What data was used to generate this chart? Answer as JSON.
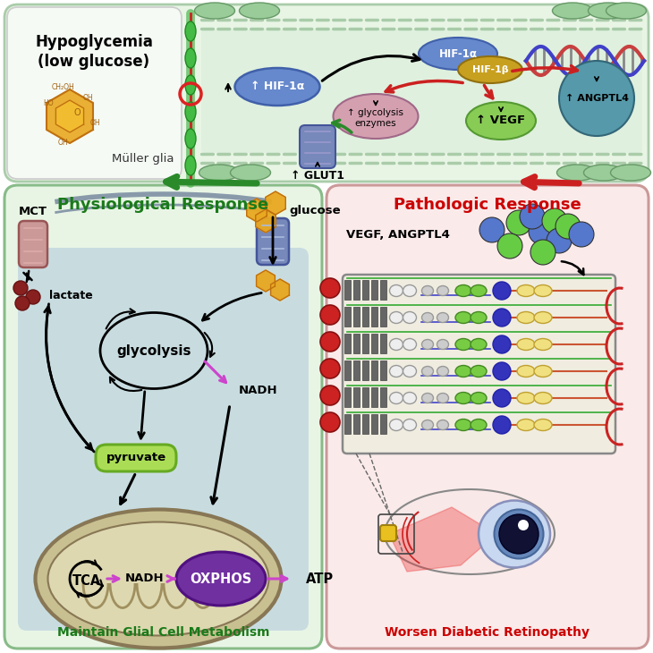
{
  "top_bg": "#e8f5e5",
  "top_border": "#aaccaa",
  "left_bg": "#e8f5e5",
  "left_border": "#88bb88",
  "right_bg": "#faeaea",
  "right_border": "#cc9999",
  "hypo_label": "Hypoglycemia\n(low glucose)",
  "muller_label": "Müller glia",
  "hif1a_small_label": "↑ HIF-1α",
  "glut1_label": "↑ GLUT1",
  "glycolysis_enzyme_label": "↑ glycolysis\nenzymes",
  "vegf_label": "↑ VEGF",
  "angptl4_label": "↑ ANGPTL4",
  "hifa_label": "HIF-1α",
  "hifb_label": "HIF-1β",
  "physio_title": "Physiological Response",
  "physio_footer": "Maintain Glial Cell Metabolism",
  "patho_title": "Pathologic Response",
  "patho_footer": "Worsen Diabetic Retinopathy",
  "mct_label": "MCT",
  "lactate_label": "lactate",
  "glucose_label": "glucose",
  "glycolysis_node": "glycolysis",
  "pyruvate_label": "pyruvate",
  "nadh_label": "NADH",
  "tca_label": "TCA",
  "oxphos_label": "OXPHOS",
  "atp_label": "ATP",
  "vegf_angptl4_label": "VEGF, ANGPTL4",
  "green_arrow": "#2a8a2a",
  "red_arrow": "#cc2020",
  "magenta_arrow": "#cc44cc",
  "black_arrow": "#111111",
  "hif1a_color": "#6688cc",
  "hif1b_color": "#c8a020",
  "gly_enz_color": "#d4a0b0",
  "vegf_color": "#88cc55",
  "angptl4_color": "#5599aa",
  "glucose_color": "#e8a820",
  "pyruvate_fill": "#aadd55",
  "oxphos_fill": "#7030a0",
  "mito_outer": "#c8c090",
  "mito_inner": "#ddd8b0",
  "mct_fill": "#cc9999",
  "transporter_fill": "#7788bb",
  "lactate_dot": "#882020",
  "physio_title_color": "#1a7a1a",
  "patho_title_color": "#cc0000",
  "footer_green": "#1a7a1a",
  "footer_red": "#cc0000",
  "membrane_color": "#8899aa",
  "cell_bg": "#c8dce0"
}
